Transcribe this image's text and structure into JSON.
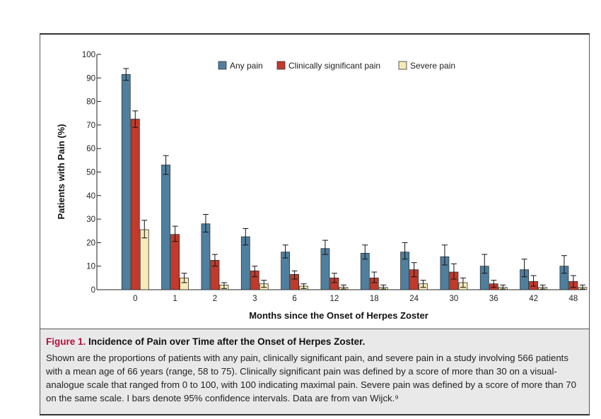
{
  "chart_data": {
    "type": "bar",
    "xlabel": "Months since the Onset of Herpes Zoster",
    "ylabel": "Patients with Pain (%)",
    "ylim": [
      0,
      100
    ],
    "yticks": [
      0,
      10,
      20,
      30,
      40,
      50,
      60,
      70,
      80,
      90,
      100
    ],
    "categories": [
      "0",
      "1",
      "2",
      "3",
      "6",
      "12",
      "18",
      "24",
      "30",
      "36",
      "42",
      "48"
    ],
    "legend_position": "top-center",
    "series": [
      {
        "name": "Any pain",
        "color": "#4f7f9f",
        "values": [
          91.5,
          53,
          28,
          22.5,
          16,
          17.5,
          15.5,
          16,
          14,
          10,
          8.5,
          10
        ],
        "ci_low": [
          89,
          49,
          24.5,
          19,
          13.5,
          15,
          13,
          13,
          10.5,
          7,
          5.5,
          7
        ],
        "ci_high": [
          94,
          57,
          32,
          26,
          19,
          21,
          19,
          20,
          19,
          15,
          13,
          14.5
        ]
      },
      {
        "name": "Clinically significant pain",
        "color": "#c23a2b",
        "values": [
          72.5,
          23.5,
          12.5,
          8,
          6.5,
          5,
          5,
          8.5,
          7.5,
          2.5,
          3.5,
          3.5
        ],
        "ci_low": [
          69,
          20.5,
          10,
          5.5,
          4.5,
          3,
          3,
          5.5,
          4.5,
          1,
          1.5,
          1
        ],
        "ci_high": [
          76,
          27,
          15,
          10,
          8,
          7,
          7.5,
          11.5,
          11,
          4,
          6,
          6
        ]
      },
      {
        "name": "Severe pain",
        "color": "#f6eab8",
        "values": [
          25.5,
          5,
          2,
          2.5,
          1.5,
          1,
          1,
          2.5,
          3,
          1,
          1,
          1
        ],
        "ci_low": [
          22,
          3,
          0.5,
          1,
          0.5,
          0.3,
          0.3,
          1,
          1,
          0.3,
          0.3,
          0.3
        ],
        "ci_high": [
          29.5,
          7,
          3,
          4,
          2.5,
          2,
          2,
          4,
          5,
          2,
          2,
          2
        ]
      }
    ]
  },
  "caption": {
    "label": "Figure 1.",
    "title": "Incidence of Pain over Time after the Onset of Herpes Zoster.",
    "body": "Shown are the proportions of patients with any pain, clinically significant pain, and severe pain in a study involving 566 patients with a mean age of 66 years (range, 58 to 75). Clinically significant pain was defined by a score of more than 30 on a visual-analogue scale that ranged from 0 to 100, with 100 indicating maximal pain. Severe pain was defined by a score of more than 70 on the same scale. I bars denote 95% confidence intervals. Data are from van Wijck.⁹"
  }
}
